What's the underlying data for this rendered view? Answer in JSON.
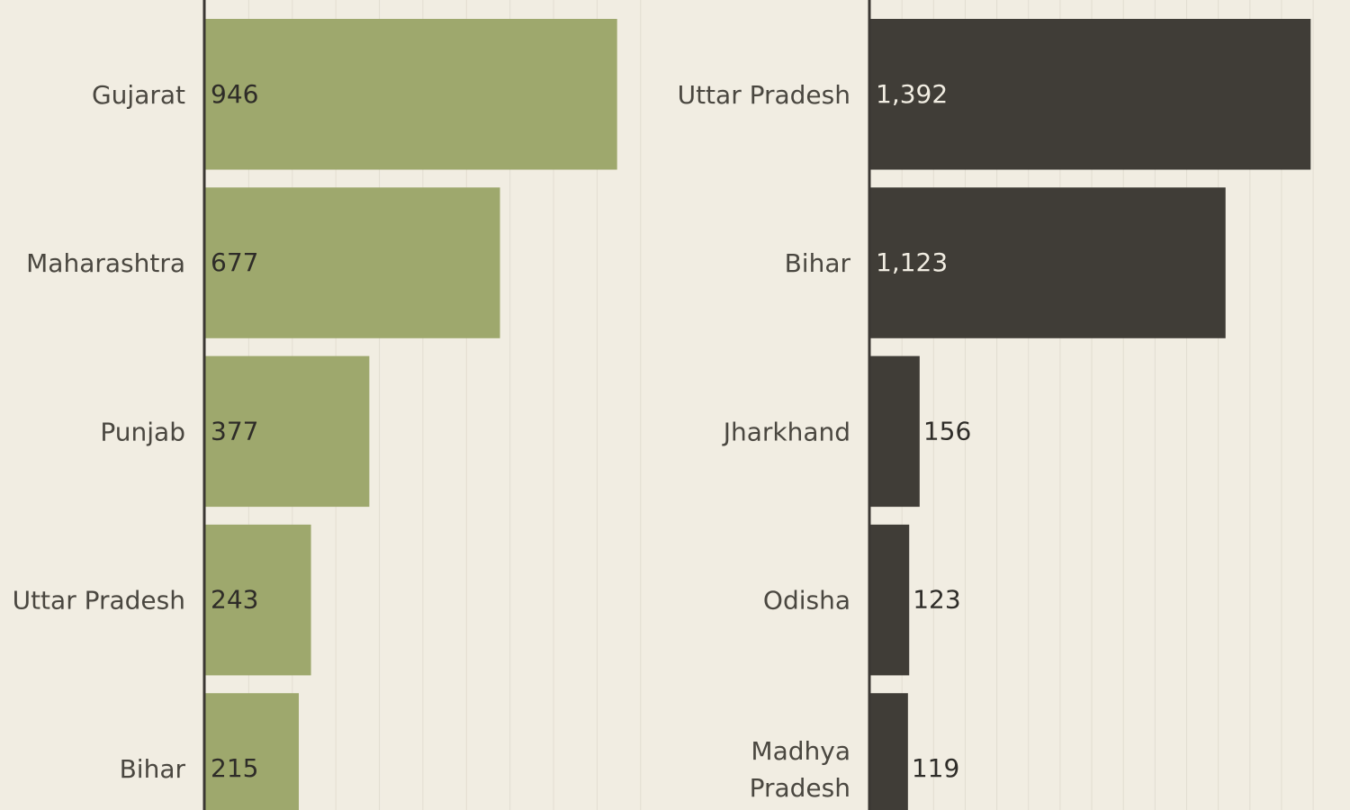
{
  "theme": {
    "background": "#f1ede2",
    "gridline": "#e2ddd1",
    "axis": "#3a3733",
    "label": "#4a4740"
  },
  "chart_data": [
    {
      "type": "bar",
      "orientation": "horizontal",
      "title": "",
      "xlabel": "",
      "ylabel": "",
      "color": "#9ea86d",
      "xlim": [
        0,
        1450
      ],
      "grid": true,
      "categories": [
        "Gujarat",
        "Maharashtra",
        "Punjab",
        "Uttar Pradesh",
        "Bihar"
      ],
      "values": [
        946,
        677,
        377,
        243,
        215
      ],
      "value_labels": [
        "946",
        "677",
        "377",
        "243",
        "215"
      ]
    },
    {
      "type": "bar",
      "orientation": "horizontal",
      "title": "",
      "xlabel": "",
      "ylabel": "",
      "color": "#403d37",
      "xlim": [
        0,
        1450
      ],
      "grid": true,
      "categories": [
        "Uttar Pradesh",
        "Bihar",
        "Jharkhand",
        "Odisha",
        "Madhya Pradesh"
      ],
      "category_lines": [
        [
          "Uttar Pradesh"
        ],
        [
          "Bihar"
        ],
        [
          "Jharkhand"
        ],
        [
          "Odisha"
        ],
        [
          "Madhya",
          "Pradesh"
        ]
      ],
      "values": [
        1392,
        1123,
        156,
        123,
        119
      ],
      "value_labels": [
        "1,392",
        "1,123",
        "156",
        "123",
        "119"
      ]
    }
  ]
}
